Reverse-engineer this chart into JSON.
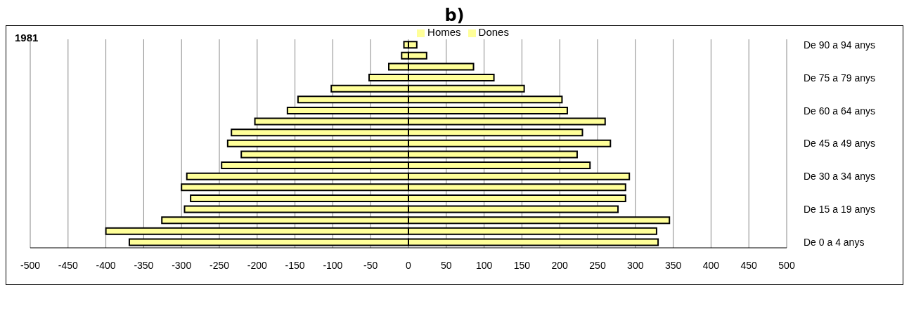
{
  "chart_data": {
    "type": "bar",
    "orientation": "horizontal",
    "stacked": true,
    "title": "b)",
    "annotations": [
      "1981"
    ],
    "categories": [
      "De 90 a 94 anys",
      null,
      null,
      "De 75 a 79 anys",
      null,
      null,
      "De 60 a 64 anys",
      null,
      null,
      "De 45 a 49 anys",
      null,
      null,
      "De 30 a 34 anys",
      null,
      null,
      "De 15 a 19 anys",
      null,
      null,
      "De 0 a 4 anys"
    ],
    "series": [
      {
        "name": "Homes",
        "color": "#ffff99",
        "values": [
          -6,
          -9,
          -26,
          -52,
          -102,
          -146,
          -160,
          -203,
          -234,
          -239,
          -221,
          -247,
          -293,
          -300,
          -288,
          -296,
          -326,
          -400,
          -369
        ]
      },
      {
        "name": "Dones",
        "color": "#ffff99",
        "values": [
          11,
          24,
          86,
          113,
          153,
          203,
          210,
          260,
          230,
          267,
          223,
          240,
          292,
          287,
          287,
          277,
          345,
          328,
          330
        ]
      }
    ],
    "xlim": [
      -500,
      500
    ],
    "xticks": [
      -500,
      -450,
      -400,
      -350,
      -300,
      -250,
      -200,
      -150,
      -100,
      -50,
      0,
      50,
      100,
      150,
      200,
      250,
      300,
      350,
      400,
      450,
      500
    ],
    "grid": "x",
    "legend": "top"
  }
}
